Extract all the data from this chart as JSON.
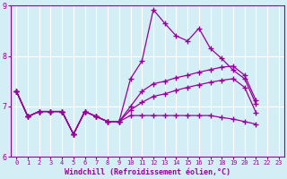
{
  "xlabel": "Windchill (Refroidissement éolien,°C)",
  "background_color": "#d4eef5",
  "line_color": "#990099",
  "grid_color": "#ffffff",
  "xlim": [
    -0.5,
    23.5
  ],
  "ylim": [
    6,
    9
  ],
  "yticks": [
    6,
    7,
    8,
    9
  ],
  "xticks": [
    0,
    1,
    2,
    3,
    4,
    5,
    6,
    7,
    8,
    9,
    10,
    11,
    12,
    13,
    14,
    15,
    16,
    17,
    18,
    19,
    20,
    21,
    22,
    23
  ],
  "s1": [
    7.3,
    6.8,
    6.9,
    6.9,
    6.9,
    6.45,
    6.9,
    6.8,
    6.7,
    6.7,
    7.55,
    7.9,
    8.92,
    8.65,
    8.4,
    8.3,
    8.55,
    8.15,
    7.95,
    7.72,
    7.55,
    7.05,
    null,
    null
  ],
  "s2": [
    7.3,
    6.8,
    6.9,
    6.9,
    6.9,
    6.45,
    6.9,
    6.8,
    6.7,
    6.7,
    7.0,
    7.3,
    7.45,
    7.5,
    7.57,
    7.62,
    7.68,
    7.73,
    7.78,
    7.8,
    7.62,
    7.12,
    null,
    null
  ],
  "s3": [
    7.3,
    6.8,
    6.9,
    6.9,
    6.9,
    6.45,
    6.9,
    6.8,
    6.7,
    6.7,
    6.93,
    7.08,
    7.2,
    7.25,
    7.32,
    7.38,
    7.43,
    7.48,
    7.52,
    7.55,
    7.38,
    6.88,
    null,
    null
  ],
  "s4": [
    7.3,
    6.8,
    6.9,
    6.9,
    6.9,
    6.45,
    6.9,
    6.8,
    6.7,
    6.7,
    6.82,
    6.82,
    6.82,
    6.82,
    6.82,
    6.82,
    6.82,
    6.82,
    6.78,
    6.75,
    6.7,
    6.65,
    null,
    null
  ]
}
